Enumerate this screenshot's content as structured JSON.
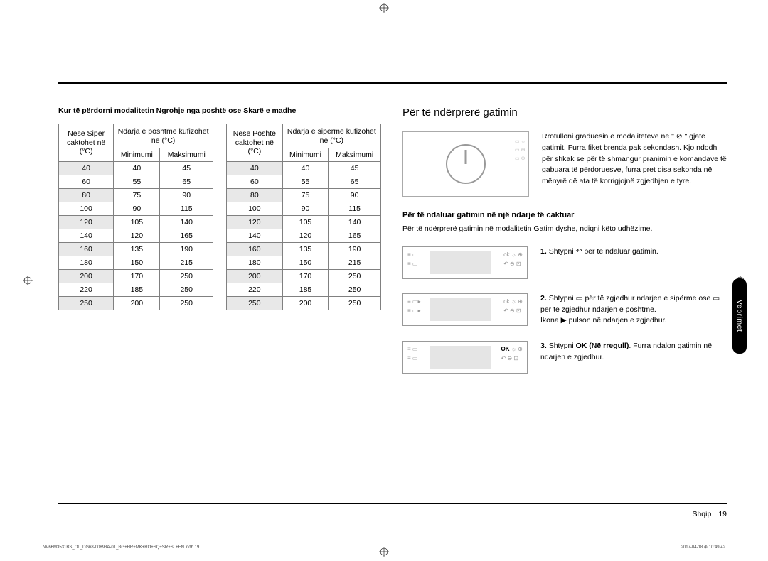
{
  "mode_text": "Kur të përdorni modalitetin Ngrohje nga poshtë ose Skarë e madhe",
  "table1": {
    "header_left": "Nëse Sipër caktohet në (°C)",
    "header_span": "Ndarja e poshtme kufizohet në (°C)",
    "col_min": "Minimumi",
    "col_max": "Maksimumi",
    "rows": [
      [
        "40",
        "40",
        "45"
      ],
      [
        "60",
        "55",
        "65"
      ],
      [
        "80",
        "75",
        "90"
      ],
      [
        "100",
        "90",
        "115"
      ],
      [
        "120",
        "105",
        "140"
      ],
      [
        "140",
        "120",
        "165"
      ],
      [
        "160",
        "135",
        "190"
      ],
      [
        "180",
        "150",
        "215"
      ],
      [
        "200",
        "170",
        "250"
      ],
      [
        "220",
        "185",
        "250"
      ],
      [
        "250",
        "200",
        "250"
      ]
    ]
  },
  "table2": {
    "header_left": "Nëse Poshtë caktohet në (°C)",
    "header_span": "Ndarja e sipërme kufizohet në (°C)",
    "col_min": "Minimumi",
    "col_max": "Maksimumi",
    "rows": [
      [
        "40",
        "40",
        "45"
      ],
      [
        "60",
        "55",
        "65"
      ],
      [
        "80",
        "75",
        "90"
      ],
      [
        "100",
        "90",
        "115"
      ],
      [
        "120",
        "105",
        "140"
      ],
      [
        "140",
        "120",
        "165"
      ],
      [
        "160",
        "135",
        "190"
      ],
      [
        "180",
        "150",
        "215"
      ],
      [
        "200",
        "170",
        "250"
      ],
      [
        "220",
        "185",
        "250"
      ],
      [
        "250",
        "200",
        "250"
      ]
    ]
  },
  "section_title": "Për të ndërprerë gatimin",
  "intro_text": "Rrotulloni graduesin e modaliteteve në \" ⊘ \" gjatë gatimit. Furra fiket brenda pak sekondash. Kjo ndodh për shkak se për të shmangur pranimin e komandave të gabuara të përdoruesve, furra pret disa sekonda në mënyrë që ata të korrigjojnë zgjedhjen e tyre.",
  "subsection_title": "Për të ndaluar gatimin në një ndarje të caktuar",
  "subsection_text": "Për të ndërprerë gatimin në modalitetin Gatim dyshe, ndiqni këto udhëzime.",
  "step1": "Shtypni ↶ për të ndaluar gatimin.",
  "step2a": "Shtypni ▭ për të zgjedhur ndarjen e sipërme ose ▭ për të zgjedhur ndarjen e poshtme.",
  "step2b": "Ikona ▶ pulson në ndarjen e zgjedhur.",
  "step3a": "Shtypni ",
  "step3_ok": "OK (Në rregull)",
  "step3b": ". Furra ndalon gatimin në ndarjen e zgjedhur.",
  "side_tab": "Veprimet",
  "footer_lang": "Shqip",
  "footer_page": "19",
  "footer_code": "NV66M3531BS_OL_DG68-00893A-01_BG+HR+MK+RO+SQ+SR+SL+EN.indb   19",
  "footer_date": "2017-04-18   ⊕ 10:49:42",
  "colors": {
    "divider": "#000000",
    "border": "#808080",
    "alt_bg": "#e8e8e8",
    "panel_bg": "#e5e5e5",
    "tab_bg": "#000000"
  }
}
